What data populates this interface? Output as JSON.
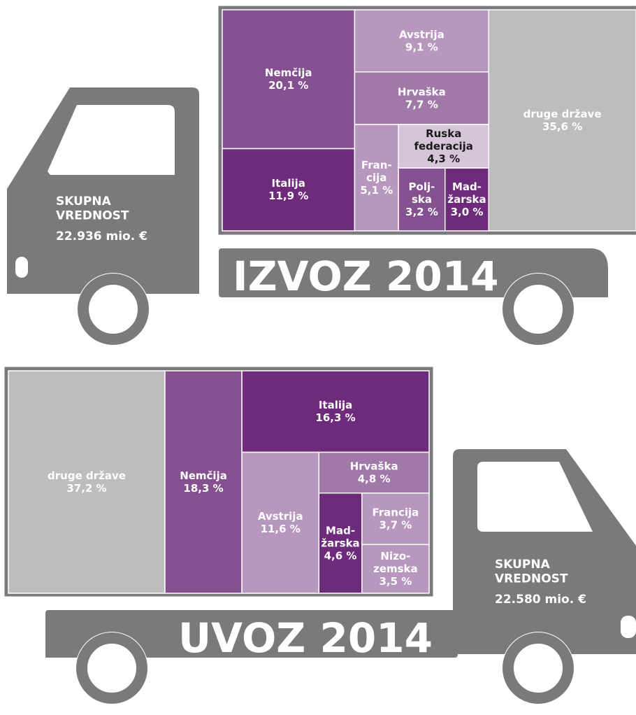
{
  "chart_data": [
    {
      "type": "treemap",
      "title": "IZVOZ 2014",
      "total_label": "SKUPNA\nVREDNOST",
      "total": "22.936 mio. €",
      "categories": [
        "Nemčija",
        "Italija",
        "Avstrija",
        "Hrvaška",
        "Fran-\ncija",
        "Ruska\nfederacija",
        "Polj-\nska",
        "Mad-\nžarska",
        "druge države"
      ],
      "values": [
        20.1,
        11.9,
        9.1,
        7.7,
        5.1,
        4.3,
        3.2,
        3.0,
        35.6
      ],
      "value_labels": [
        "20,1 %",
        "11,9 %",
        "9,1 %",
        "7,7 %",
        "5,1 %",
        "4,3 %",
        "3,2 %",
        "3,0 %",
        "35,6 %"
      ],
      "colors": [
        "#84508f",
        "#6f2b7b",
        "#b897bf",
        "#a079a8",
        "#b897bf",
        "#d6c4d9",
        "#84508f",
        "#6f2b7b",
        "#bdbdbf"
      ]
    },
    {
      "type": "treemap",
      "title": "UVOZ 2014",
      "total_label": "SKUPNA\nVREDNOST",
      "total": "22.580 mio. €",
      "categories": [
        "druge države",
        "Nemčija",
        "Italija",
        "Avstrija",
        "Hrvaška",
        "Mad-\nžarska",
        "Francija",
        "Nizo-\nzemska"
      ],
      "values": [
        37.2,
        18.3,
        16.3,
        11.6,
        4.8,
        4.6,
        3.7,
        3.5
      ],
      "value_labels": [
        "37,2 %",
        "18,3 %",
        "16,3 %",
        "11,6 %",
        "4,8 %",
        "4,6 %",
        "3,7 %",
        "3,5 %"
      ],
      "colors": [
        "#bdbdbf",
        "#84508f",
        "#6f2b7b",
        "#b897bf",
        "#a079a8",
        "#6f2b7b",
        "#b897bf",
        "#b897bf"
      ]
    }
  ]
}
